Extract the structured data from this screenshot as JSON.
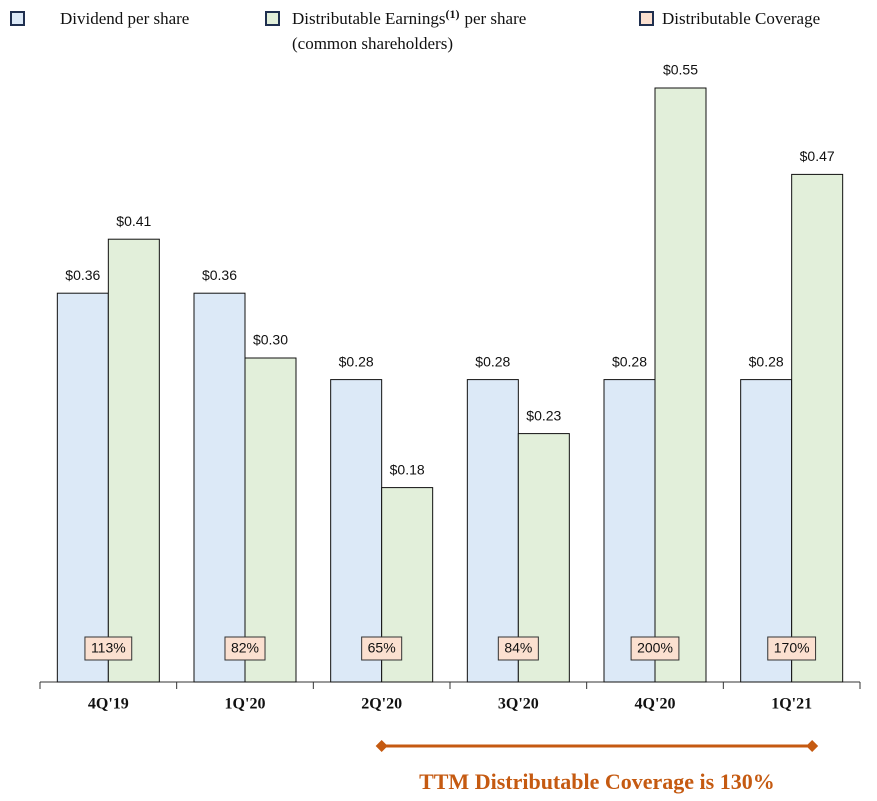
{
  "chart_data": {
    "type": "bar",
    "categories": [
      "4Q'19",
      "1Q'20",
      "2Q'20",
      "3Q'20",
      "4Q'20",
      "1Q'21"
    ],
    "series": [
      {
        "name": "Dividend per share",
        "color": "#dce9f7",
        "values": [
          0.36,
          0.36,
          0.28,
          0.28,
          0.28,
          0.28
        ],
        "value_labels": [
          "$0.36",
          "$0.36",
          "$0.28",
          "$0.28",
          "$0.28",
          "$0.28"
        ]
      },
      {
        "name": "Distributable Earnings",
        "name_note": "(1)",
        "name_rest": "per share",
        "name_line2": "(common shareholders)",
        "color": "#e2efda",
        "values": [
          0.41,
          0.3,
          0.18,
          0.23,
          0.55,
          0.47
        ],
        "value_labels": [
          "$0.41",
          "$0.30",
          "$0.18",
          "$0.23",
          "$0.55",
          "$0.47"
        ]
      },
      {
        "name": "Distributable Coverage",
        "color": "#fbe0d0",
        "values": [
          113,
          82,
          65,
          84,
          200,
          170
        ],
        "value_labels": [
          "113%",
          "82%",
          "65%",
          "84%",
          "200%",
          "170%"
        ]
      }
    ],
    "annotation": "TTM Distributable Coverage is 130%",
    "annotation_color": "#c55a11"
  }
}
